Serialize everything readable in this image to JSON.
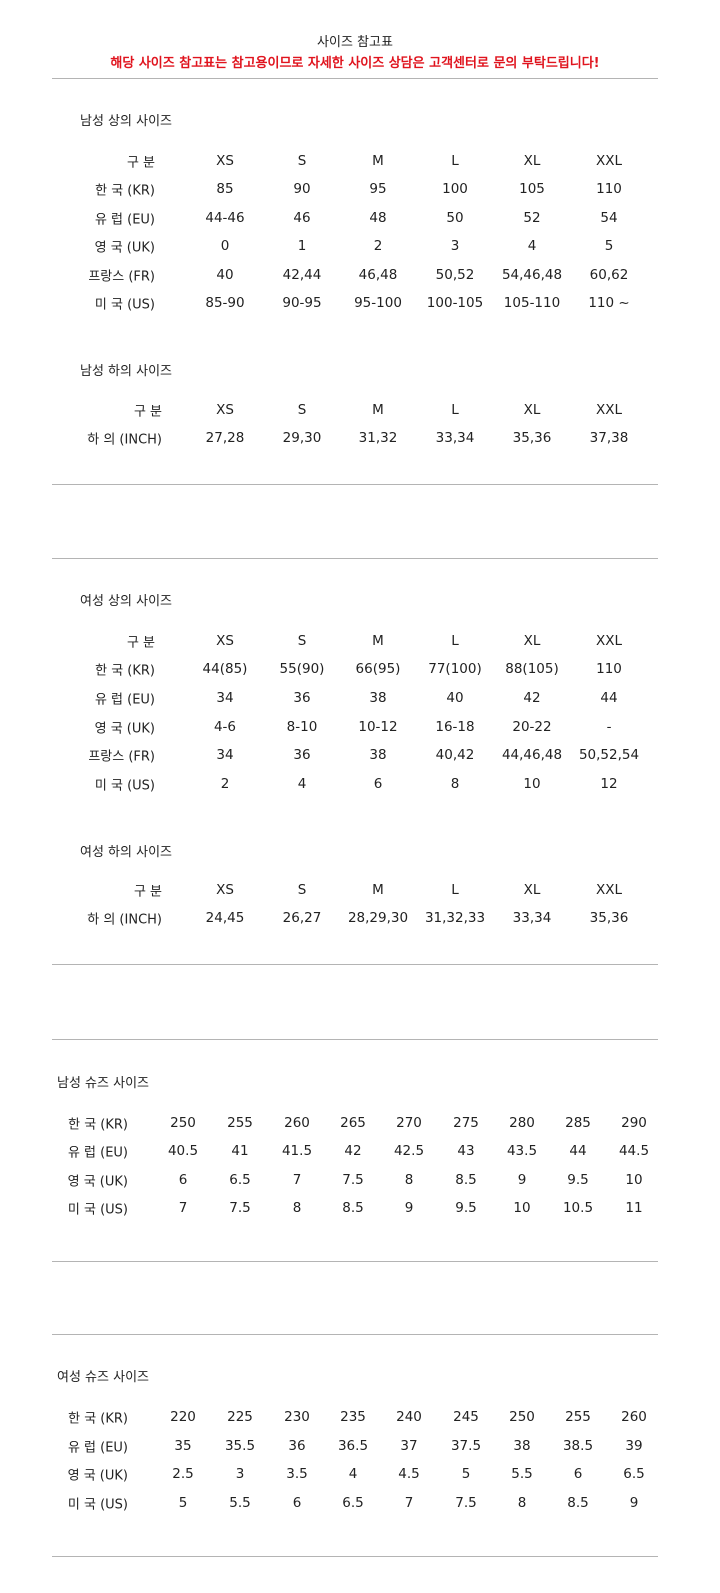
{
  "header": {
    "title": "사이즈 참고표",
    "notice": "해당 사이즈 참고표는 참고용이므로 자세한 사이즈 상담은 고객센터로 문의 부탁드립니다!",
    "notice_color": "#e0141e"
  },
  "tables": [
    {
      "title": "남성 상의 사이즈",
      "rows": [
        {
          "label": "구 분",
          "values": [
            "XS",
            "S",
            "M",
            "L",
            "XL",
            "XXL"
          ]
        },
        {
          "label": "한 국 (KR)",
          "values": [
            "85",
            "90",
            "95",
            "100",
            "105",
            "110"
          ]
        },
        {
          "label": "유 럽 (EU)",
          "values": [
            "44-46",
            "46",
            "48",
            "50",
            "52",
            "54"
          ]
        },
        {
          "label": "영 국 (UK)",
          "values": [
            "0",
            "1",
            "2",
            "3",
            "4",
            "5"
          ]
        },
        {
          "label": "프랑스 (FR)",
          "values": [
            "40",
            "42,44",
            "46,48",
            "50,52",
            "54,46,48",
            "60,62"
          ]
        },
        {
          "label": "미 국 (US)",
          "values": [
            "85-90",
            "90-95",
            "95-100",
            "100-105",
            "105-110",
            "110 ~"
          ]
        }
      ]
    },
    {
      "title": "남성 하의 사이즈",
      "rows": [
        {
          "label": "구 분",
          "values": [
            "XS",
            "S",
            "M",
            "L",
            "XL",
            "XXL"
          ]
        },
        {
          "label": "하 의 (INCH)",
          "values": [
            "27,28",
            "29,30",
            "31,32",
            "33,34",
            "35,36",
            "37,38"
          ]
        }
      ]
    },
    {
      "title": "여성 상의 사이즈",
      "rows": [
        {
          "label": "구 분",
          "values": [
            "XS",
            "S",
            "M",
            "L",
            "XL",
            "XXL"
          ]
        },
        {
          "label": "한 국 (KR)",
          "values": [
            "44(85)",
            "55(90)",
            "66(95)",
            "77(100)",
            "88(105)",
            "110"
          ]
        },
        {
          "label": "유 럽 (EU)",
          "values": [
            "34",
            "36",
            "38",
            "40",
            "42",
            "44"
          ]
        },
        {
          "label": "영 국 (UK)",
          "values": [
            "4-6",
            "8-10",
            "10-12",
            "16-18",
            "20-22",
            "-"
          ]
        },
        {
          "label": "프랑스 (FR)",
          "values": [
            "34",
            "36",
            "38",
            "40,42",
            "44,46,48",
            "50,52,54"
          ]
        },
        {
          "label": "미 국 (US)",
          "values": [
            "2",
            "4",
            "6",
            "8",
            "10",
            "12"
          ]
        }
      ]
    },
    {
      "title": "여성 하의 사이즈",
      "rows": [
        {
          "label": "구 분",
          "values": [
            "XS",
            "S",
            "M",
            "L",
            "XL",
            "XXL"
          ]
        },
        {
          "label": "하 의 (INCH)",
          "values": [
            "24,45",
            "26,27",
            "28,29,30",
            "31,32,33",
            "33,34",
            "35,36"
          ]
        }
      ]
    },
    {
      "title": "남성 슈즈 사이즈",
      "rows": [
        {
          "label": "한 국 (KR)",
          "values": [
            "250",
            "255",
            "260",
            "265",
            "270",
            "275",
            "280",
            "285",
            "290"
          ]
        },
        {
          "label": "유 럽 (EU)",
          "values": [
            "40.5",
            "41",
            "41.5",
            "42",
            "42.5",
            "43",
            "43.5",
            "44",
            "44.5"
          ]
        },
        {
          "label": "영 국 (UK)",
          "values": [
            "6",
            "6.5",
            "7",
            "7.5",
            "8",
            "8.5",
            "9",
            "9.5",
            "10"
          ]
        },
        {
          "label": "미 국 (US)",
          "values": [
            "7",
            "7.5",
            "8",
            "8.5",
            "9",
            "9.5",
            "10",
            "10.5",
            "11"
          ]
        }
      ]
    },
    {
      "title": "여성 슈즈 사이즈",
      "rows": [
        {
          "label": "한 국 (KR)",
          "values": [
            "220",
            "225",
            "230",
            "235",
            "240",
            "245",
            "250",
            "255",
            "260"
          ]
        },
        {
          "label": "유 럽 (EU)",
          "values": [
            "35",
            "35.5",
            "36",
            "36.5",
            "37",
            "37.5",
            "38",
            "38.5",
            "39"
          ]
        },
        {
          "label": "영 국 (UK)",
          "values": [
            "2.5",
            "3",
            "3.5",
            "4",
            "4.5",
            "5",
            "5.5",
            "6",
            "6.5"
          ]
        },
        {
          "label": "미 국 (US)",
          "values": [
            "5",
            "5.5",
            "6",
            "6.5",
            "7",
            "7.5",
            "8",
            "8.5",
            "9"
          ]
        }
      ]
    }
  ]
}
